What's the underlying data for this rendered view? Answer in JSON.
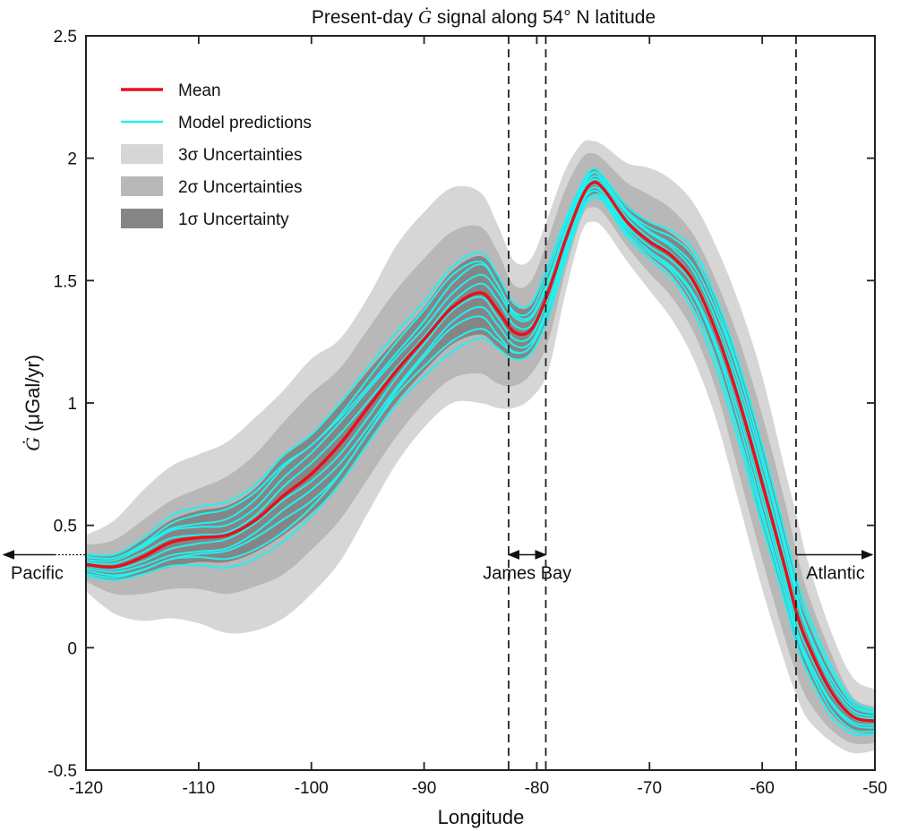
{
  "chart_data": {
    "type": "area",
    "title_prefix": "Present-day",
    "title_symbol": "Ġ",
    "title_suffix": "signal along 54° N latitude",
    "xlabel": "Longitude",
    "ylabel_symbol": "Ġ",
    "ylabel_unit": "(μGal/yr)",
    "xlim": [
      -120,
      -50
    ],
    "ylim": [
      -0.5,
      2.5
    ],
    "xticks": [
      -120,
      -110,
      -100,
      -90,
      -80,
      -70,
      -60,
      -50
    ],
    "yticks": [
      -0.5,
      0,
      0.5,
      1,
      1.5,
      2,
      2.5
    ],
    "grid": false,
    "legend_position": "top-left",
    "colors": {
      "mean": "#e8101a",
      "model": "#22f0f0",
      "sigma3": "#d6d6d6",
      "sigma2": "#b8b8b8",
      "sigma1": "#858585",
      "axis": "#222222"
    },
    "legend": [
      {
        "label": "Mean",
        "kind": "line",
        "color": "#e8101a"
      },
      {
        "label": "Model predictions",
        "kind": "line",
        "color": "#22f0f0"
      },
      {
        "label": "3σ Uncertainties",
        "kind": "patch",
        "color": "#d6d6d6"
      },
      {
        "label": "2σ Uncertainties",
        "kind": "patch",
        "color": "#b8b8b8"
      },
      {
        "label": "1σ Uncertainty",
        "kind": "patch",
        "color": "#858585"
      }
    ],
    "x": [
      -120,
      -117.5,
      -115,
      -112.5,
      -110,
      -107.5,
      -105,
      -102.5,
      -100,
      -97.5,
      -95,
      -92.5,
      -90,
      -87.5,
      -85,
      -83.5,
      -82,
      -80.5,
      -79,
      -77.5,
      -76,
      -75,
      -74,
      -72,
      -70,
      -68,
      -66,
      -64,
      -62,
      -60,
      -58,
      -57,
      -56,
      -54,
      -52,
      -50
    ],
    "series": [
      {
        "name": "Mean",
        "values": [
          0.34,
          0.33,
          0.37,
          0.43,
          0.45,
          0.46,
          0.52,
          0.62,
          0.71,
          0.83,
          0.98,
          1.13,
          1.26,
          1.39,
          1.45,
          1.38,
          1.29,
          1.3,
          1.45,
          1.66,
          1.84,
          1.9,
          1.87,
          1.74,
          1.66,
          1.6,
          1.49,
          1.28,
          1.0,
          0.67,
          0.33,
          0.15,
          0.02,
          -0.17,
          -0.28,
          -0.3
        ]
      }
    ],
    "bands": [
      {
        "name": "3σ",
        "lower": [
          0.23,
          0.14,
          0.11,
          0.12,
          0.1,
          0.06,
          0.07,
          0.12,
          0.22,
          0.35,
          0.55,
          0.75,
          0.9,
          1.0,
          1.0,
          0.98,
          0.98,
          1.02,
          1.13,
          1.44,
          1.7,
          1.74,
          1.71,
          1.58,
          1.46,
          1.34,
          1.17,
          0.92,
          0.58,
          0.24,
          -0.06,
          -0.19,
          -0.29,
          -0.38,
          -0.43,
          -0.42
        ],
        "upper": [
          0.46,
          0.52,
          0.64,
          0.74,
          0.79,
          0.84,
          0.94,
          1.05,
          1.18,
          1.26,
          1.43,
          1.64,
          1.78,
          1.88,
          1.86,
          1.73,
          1.58,
          1.59,
          1.76,
          1.95,
          2.06,
          2.07,
          2.05,
          1.98,
          1.96,
          1.91,
          1.81,
          1.63,
          1.4,
          1.11,
          0.73,
          0.55,
          0.36,
          0.08,
          -0.12,
          -0.17
        ]
      },
      {
        "name": "2σ",
        "lower": [
          0.27,
          0.22,
          0.22,
          0.24,
          0.24,
          0.22,
          0.25,
          0.3,
          0.4,
          0.52,
          0.69,
          0.86,
          1.0,
          1.1,
          1.12,
          1.08,
          1.07,
          1.12,
          1.25,
          1.53,
          1.76,
          1.8,
          1.77,
          1.64,
          1.53,
          1.43,
          1.28,
          1.04,
          0.7,
          0.36,
          0.04,
          -0.1,
          -0.21,
          -0.33,
          -0.39,
          -0.39
        ],
        "upper": [
          0.42,
          0.44,
          0.52,
          0.6,
          0.65,
          0.7,
          0.79,
          0.92,
          1.04,
          1.14,
          1.3,
          1.46,
          1.59,
          1.7,
          1.72,
          1.62,
          1.48,
          1.5,
          1.67,
          1.87,
          2.0,
          2.02,
          1.99,
          1.9,
          1.85,
          1.79,
          1.68,
          1.49,
          1.25,
          0.95,
          0.6,
          0.4,
          0.23,
          -0.01,
          -0.2,
          -0.24
        ]
      },
      {
        "name": "1σ",
        "lower": [
          0.3,
          0.28,
          0.3,
          0.33,
          0.35,
          0.35,
          0.39,
          0.46,
          0.55,
          0.67,
          0.84,
          1.0,
          1.13,
          1.24,
          1.28,
          1.23,
          1.18,
          1.21,
          1.36,
          1.6,
          1.8,
          1.85,
          1.82,
          1.69,
          1.6,
          1.52,
          1.38,
          1.16,
          0.85,
          0.51,
          0.19,
          0.03,
          -0.09,
          -0.26,
          -0.34,
          -0.35
        ],
        "upper": [
          0.38,
          0.38,
          0.44,
          0.52,
          0.56,
          0.58,
          0.65,
          0.78,
          0.87,
          0.99,
          1.13,
          1.26,
          1.39,
          1.54,
          1.6,
          1.52,
          1.4,
          1.4,
          1.55,
          1.74,
          1.9,
          1.96,
          1.92,
          1.81,
          1.74,
          1.69,
          1.6,
          1.41,
          1.15,
          0.83,
          0.47,
          0.28,
          0.13,
          -0.08,
          -0.22,
          -0.26
        ]
      }
    ],
    "model_offsets": [
      0.05,
      -0.05,
      0.09,
      -0.09,
      0.02,
      -0.02,
      0.12,
      -0.12,
      0.07,
      -0.07
    ],
    "vertical_markers": [
      -82.5,
      -79.2,
      -57
    ],
    "regions": [
      {
        "label": "Pacific",
        "arrow_from": -120,
        "arrow_to": -128.5,
        "y": 0.38
      },
      {
        "label": "James Bay",
        "arrow_from": -82.5,
        "arrow_to": -79.2,
        "y": 0.38
      },
      {
        "label": "Atlantic",
        "arrow_from": -57,
        "arrow_to": -50,
        "y": 0.38
      }
    ]
  }
}
